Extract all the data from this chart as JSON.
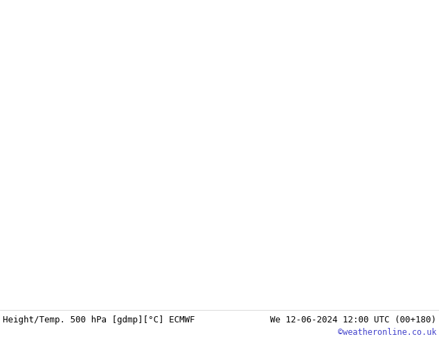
{
  "title_left": "Height/Temp. 500 hPa [gdmp][°C] ECMWF",
  "title_right": "We 12-06-2024 12:00 UTC (00+180)",
  "watermark": "©weatheronline.co.uk",
  "fig_width": 6.34,
  "fig_height": 4.9,
  "dpi": 100,
  "footer_bg": "#ffffff",
  "footer_text_color": "#000000",
  "watermark_color": "#4444cc",
  "title_fontsize": 9.0,
  "watermark_fontsize": 8.5,
  "map_bg_ocean": "#c8d4e0",
  "map_bg_land": "#b8d4a0",
  "map_bg_white": "#f0f0f0"
}
